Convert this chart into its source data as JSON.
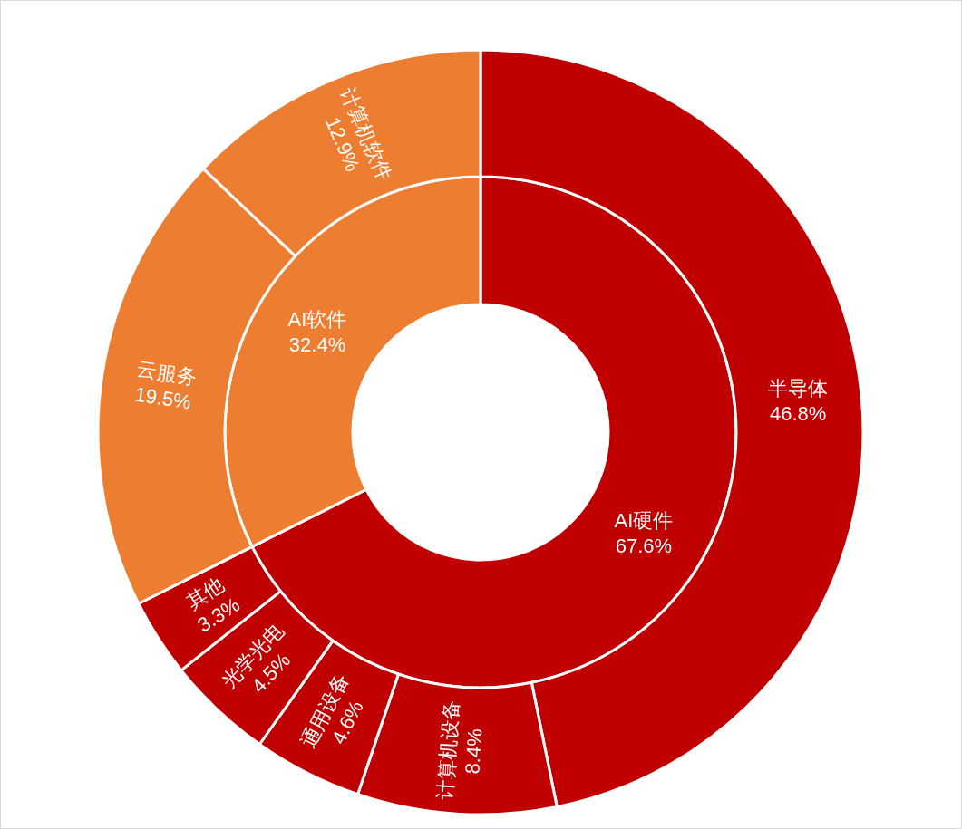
{
  "chart_data": [
    {
      "type": "donut",
      "categories": [
        "AI硬件",
        "AI软件"
      ],
      "values": [
        67.6,
        32.4
      ],
      "colors": [
        "#c00000",
        "#ed7d31"
      ],
      "value_labels": [
        "67.6%",
        "32.4%"
      ]
    },
    {
      "type": "donut",
      "categories": [
        "半导体",
        "计算机设备",
        "通用设备",
        "光学光电",
        "其他",
        "云服务",
        "计算机软件"
      ],
      "values": [
        46.8,
        8.4,
        4.6,
        4.5,
        3.3,
        19.5,
        12.9
      ],
      "colors": [
        "#c00000",
        "#c00000",
        "#c00000",
        "#c00000",
        "#c00000",
        "#ed7d31",
        "#ed7d31"
      ],
      "value_labels": [
        "46.8%",
        "8.4%",
        "4.6%",
        "4.5%",
        "3.3%",
        "19.5%",
        "12.9%"
      ]
    }
  ]
}
